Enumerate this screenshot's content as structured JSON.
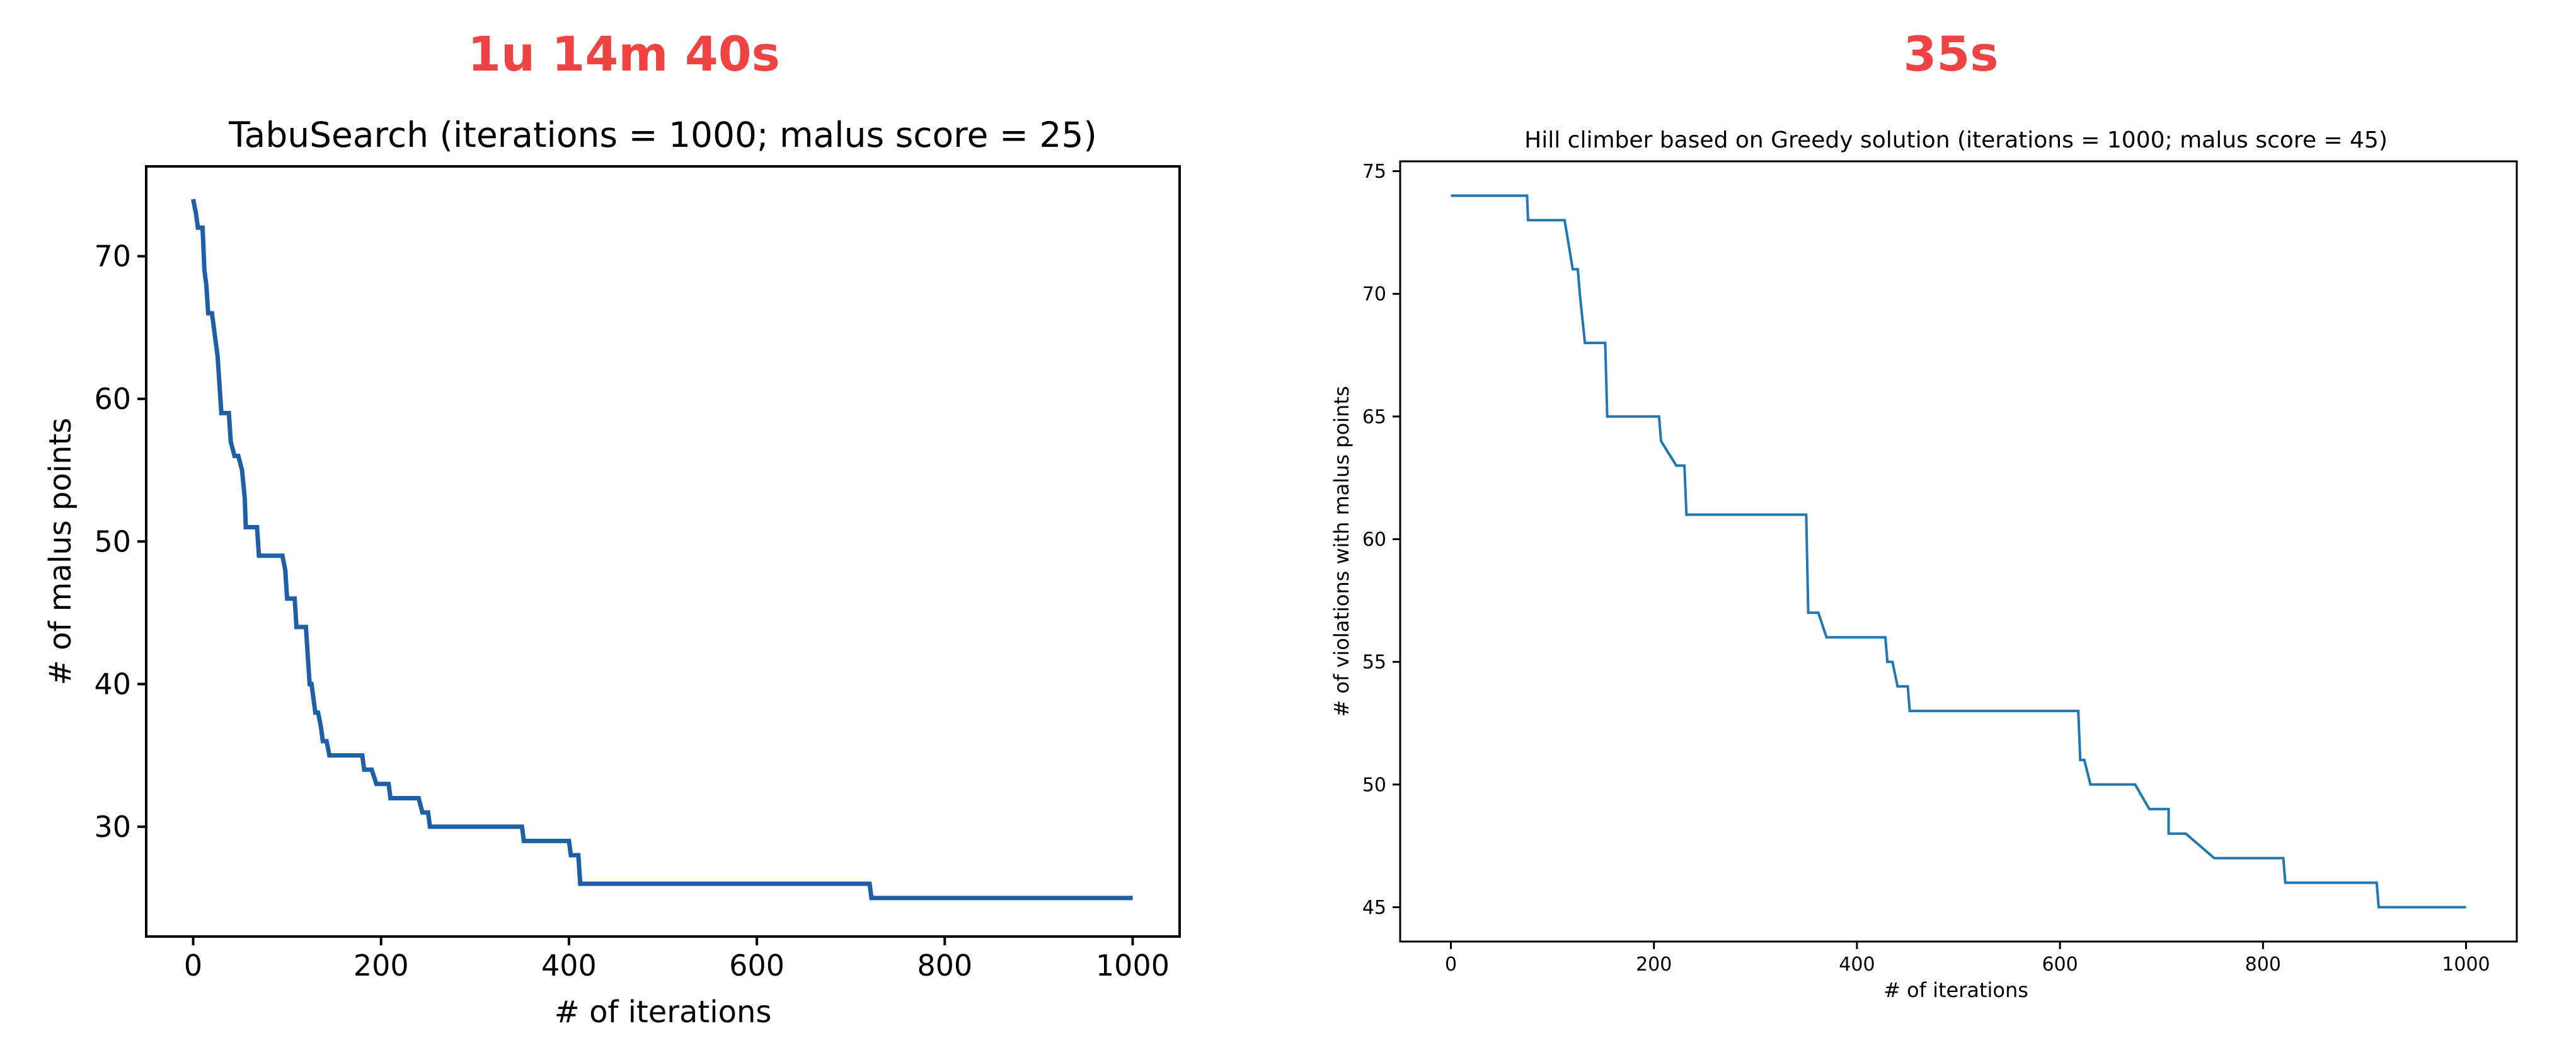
{
  "chart_data": [
    {
      "type": "line",
      "runtime": "1u 14m 40s",
      "title": "TabuSearch (iterations = 1000; malus score = 25)",
      "xlabel": "# of iterations",
      "ylabel": "# of malus points",
      "xlim": [
        -50,
        1050
      ],
      "ylim": [
        22.3,
        76.3
      ],
      "xticks": [
        0,
        200,
        400,
        600,
        800,
        1000
      ],
      "yticks": [
        30,
        40,
        50,
        60,
        70
      ],
      "grid": false,
      "color": "#1f5fa8",
      "x": [
        0,
        3,
        5,
        10,
        12,
        14,
        16,
        20,
        24,
        26,
        28,
        30,
        38,
        40,
        44,
        48,
        52,
        55,
        56,
        58,
        60,
        68,
        70,
        95,
        98,
        100,
        108,
        110,
        120,
        122,
        124,
        126,
        128,
        130,
        133,
        136,
        138,
        142,
        145,
        152,
        180,
        182,
        190,
        195,
        208,
        210,
        240,
        244,
        250,
        252,
        350,
        352,
        400,
        402,
        410,
        412,
        720,
        722,
        1000
      ],
      "y": [
        74,
        73,
        72,
        72,
        69,
        68,
        66,
        66,
        64,
        63,
        61,
        59,
        59,
        57,
        56,
        56,
        55,
        53,
        51,
        51,
        51,
        51,
        49,
        49,
        48,
        46,
        46,
        44,
        44,
        42,
        40,
        40,
        39,
        38,
        38,
        37,
        36,
        36,
        35,
        35,
        35,
        34,
        34,
        33,
        33,
        32,
        32,
        31,
        31,
        30,
        30,
        29,
        29,
        28,
        28,
        26,
        26,
        25,
        25
      ]
    },
    {
      "type": "line",
      "runtime": "35s",
      "title": "Hill climber based on Greedy solution (iterations = 1000; malus score = 45)",
      "xlabel": "# of iterations",
      "ylabel": "# of violations with malus points",
      "xlim": [
        -50,
        1050
      ],
      "ylim": [
        43.6,
        75.4
      ],
      "xticks": [
        0,
        200,
        400,
        600,
        800,
        1000
      ],
      "yticks": [
        45,
        50,
        55,
        60,
        65,
        70,
        75
      ],
      "grid": false,
      "color": "#1f77b4",
      "x": [
        0,
        75,
        76,
        110,
        112,
        120,
        122,
        125,
        127,
        132,
        134,
        152,
        154,
        205,
        207,
        222,
        224,
        230,
        232,
        350,
        352,
        360,
        362,
        370,
        372,
        428,
        430,
        433,
        435,
        440,
        442,
        448,
        450,
        452,
        454,
        618,
        620,
        622,
        624,
        630,
        632,
        672,
        674,
        688,
        690,
        705,
        707,
        707,
        709,
        722,
        724,
        752,
        754,
        820,
        822,
        912,
        914,
        1000
      ],
      "y": [
        74,
        74,
        73,
        73,
        73,
        71,
        71,
        71,
        70,
        68,
        68,
        68,
        65,
        65,
        64,
        63,
        63,
        63,
        61,
        61,
        57,
        57,
        57,
        56,
        56,
        56,
        55,
        55,
        55,
        54,
        54,
        54,
        54,
        53,
        53,
        53,
        51,
        51,
        51,
        50,
        50,
        50,
        50,
        49,
        49,
        49,
        49,
        48,
        48,
        48,
        48,
        47,
        47,
        47,
        46,
        46,
        45,
        45
      ]
    }
  ]
}
